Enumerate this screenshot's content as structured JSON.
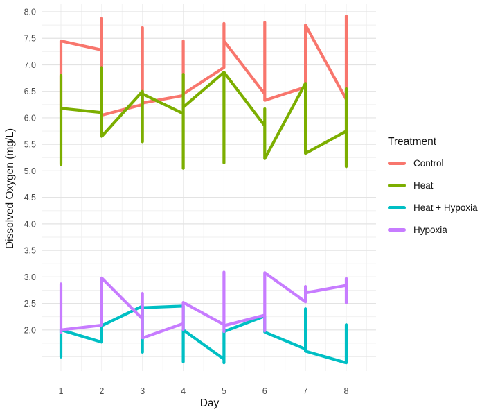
{
  "chart_data": {
    "type": "line",
    "title": "",
    "xlabel": "Day",
    "ylabel": "Dissolved Oxygen (mg/L)",
    "x_ticks": [
      1,
      2,
      3,
      4,
      5,
      6,
      7,
      8
    ],
    "y_tick_labels": [
      "8.0",
      "7.5",
      "7.0",
      "6.5",
      "6.0",
      "5.5",
      "5.0",
      "4.5",
      "4.0",
      "3.5",
      "3.0",
      "2.5",
      "2.0"
    ],
    "xlim": [
      0.55,
      8.7
    ],
    "ylim": [
      1.25,
      8.15
    ],
    "grid": {
      "major_step": 0.5,
      "minor_step": 0.25,
      "shown": true
    },
    "legend": {
      "title": "Treatment",
      "position": "right"
    },
    "series": [
      {
        "name": "Control",
        "color": "#F8766D",
        "points": [
          [
            1,
            6.1
          ],
          [
            1,
            7.45
          ],
          [
            2,
            7.28
          ],
          [
            2,
            7.88
          ],
          [
            2,
            6.05
          ],
          [
            3,
            6.25
          ],
          [
            3,
            7.7
          ],
          [
            3,
            6.28
          ],
          [
            4,
            6.42
          ],
          [
            4,
            7.45
          ],
          [
            4,
            6.45
          ],
          [
            5,
            6.95
          ],
          [
            5,
            7.78
          ],
          [
            5,
            7.45
          ],
          [
            6,
            6.45
          ],
          [
            6,
            7.8
          ],
          [
            6,
            6.33
          ],
          [
            7,
            6.58
          ],
          [
            7,
            7.75
          ],
          [
            8,
            6.35
          ],
          [
            8,
            7.92
          ]
        ]
      },
      {
        "name": "Heat",
        "color": "#7CAE00",
        "points": [
          [
            1,
            6.8
          ],
          [
            1,
            5.12
          ],
          [
            1,
            6.18
          ],
          [
            2,
            6.1
          ],
          [
            2,
            6.95
          ],
          [
            2,
            5.65
          ],
          [
            3,
            6.5
          ],
          [
            3,
            5.55
          ],
          [
            3,
            6.45
          ],
          [
            4,
            6.08
          ],
          [
            4,
            6.82
          ],
          [
            4,
            5.05
          ],
          [
            4,
            6.2
          ],
          [
            5,
            6.86
          ],
          [
            5,
            5.15
          ],
          [
            5,
            6.86
          ],
          [
            6,
            5.85
          ],
          [
            6,
            6.17
          ],
          [
            6,
            5.23
          ],
          [
            7,
            6.65
          ],
          [
            7,
            5.33
          ],
          [
            8,
            5.75
          ],
          [
            8,
            6.55
          ],
          [
            8,
            5.08
          ]
        ]
      },
      {
        "name": "Heat + Hypoxia",
        "color": "#00BFC4",
        "points": [
          [
            1,
            2.02
          ],
          [
            1,
            1.49
          ],
          [
            1,
            2.0
          ],
          [
            2,
            1.77
          ],
          [
            2,
            2.08
          ],
          [
            3,
            2.45
          ],
          [
            3,
            1.58
          ],
          [
            3,
            2.42
          ],
          [
            4,
            2.45
          ],
          [
            4,
            1.4
          ],
          [
            4,
            2.0
          ],
          [
            5,
            1.45
          ],
          [
            5,
            1.38
          ],
          [
            5,
            1.97
          ],
          [
            6,
            2.26
          ],
          [
            6,
            1.96
          ],
          [
            7,
            1.64
          ],
          [
            7,
            2.4
          ],
          [
            7,
            1.6
          ],
          [
            8,
            1.38
          ],
          [
            8,
            2.1
          ]
        ]
      },
      {
        "name": "Hypoxia",
        "color": "#C77CFF",
        "points": [
          [
            1,
            1.95
          ],
          [
            1,
            2.87
          ],
          [
            1,
            2.0
          ],
          [
            2,
            2.09
          ],
          [
            2,
            2.98
          ],
          [
            3,
            2.21
          ],
          [
            3,
            2.69
          ],
          [
            3,
            1.85
          ],
          [
            4,
            2.12
          ],
          [
            4,
            2.01
          ],
          [
            4,
            2.52
          ],
          [
            5,
            2.1
          ],
          [
            5,
            1.97
          ],
          [
            5,
            3.09
          ],
          [
            5,
            2.08
          ],
          [
            6,
            2.28
          ],
          [
            6,
            1.98
          ],
          [
            6,
            3.08
          ],
          [
            7,
            2.53
          ],
          [
            7,
            2.82
          ],
          [
            7,
            2.7
          ],
          [
            8,
            2.84
          ],
          [
            8,
            2.97
          ],
          [
            8,
            2.51
          ]
        ]
      }
    ],
    "style_colors": {
      "tick_label": "#4d4d4d",
      "axis_title": "#111111",
      "grid_major": "#e3e3e3",
      "grid_minor": "#efefef",
      "background": "#ffffff"
    }
  }
}
